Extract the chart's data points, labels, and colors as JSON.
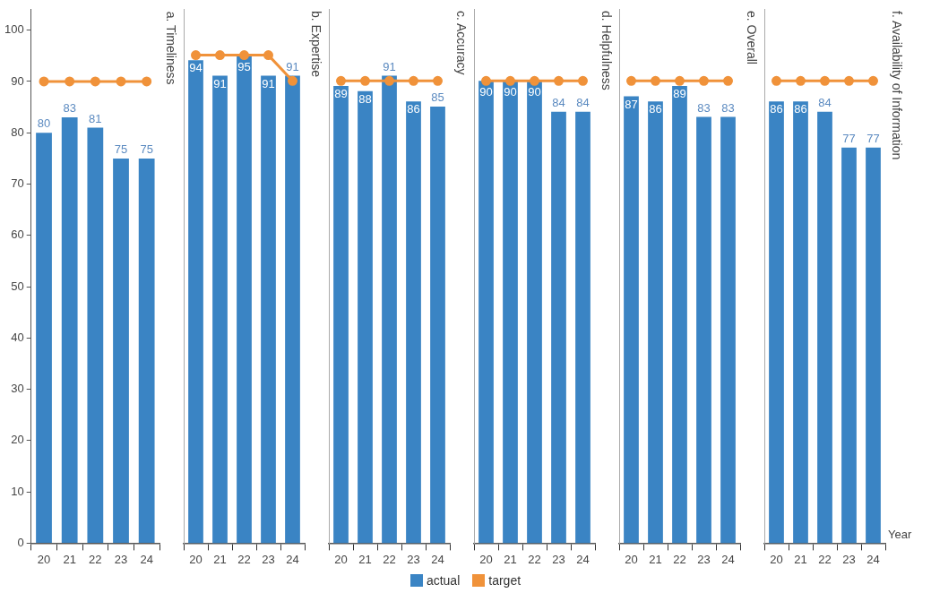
{
  "chart_data": [
    {
      "type": "bar",
      "title": "a. Timeliness",
      "categories": [
        "20",
        "21",
        "22",
        "23",
        "24"
      ],
      "ylim": [
        0,
        104
      ],
      "yticks": [
        0,
        10,
        20,
        30,
        40,
        50,
        60,
        70,
        80,
        90,
        100
      ],
      "legend": "bottom",
      "marker": "circle",
      "series": [
        {
          "name": "actual",
          "color": "#3a84c4",
          "values": [
            80,
            83,
            81,
            75,
            75
          ],
          "value_labels": [
            "80",
            "83",
            "81",
            "75",
            "75"
          ]
        },
        {
          "name": "target",
          "type": "line",
          "color": "#f0923a",
          "values": [
            90,
            90,
            90,
            90,
            90
          ]
        }
      ]
    },
    {
      "type": "bar",
      "title": "b. Expertise",
      "categories": [
        "20",
        "21",
        "22",
        "23",
        "24"
      ],
      "ylim": [
        0,
        104
      ],
      "tick_labels": "x",
      "marker": "circle",
      "series": [
        {
          "color": "#3a84c4",
          "values": [
            94,
            91,
            95,
            91,
            91
          ],
          "value_labels": [
            "94",
            "91",
            "95",
            "91",
            "91"
          ]
        },
        {
          "type": "line",
          "color": "#f0923a",
          "values": [
            95,
            95,
            95,
            95,
            90
          ]
        }
      ]
    },
    {
      "type": "bar",
      "title": "c. Accuracy",
      "categories": [
        "20",
        "21",
        "22",
        "23",
        "24"
      ],
      "ylim": [
        0,
        104
      ],
      "tick_labels": "x",
      "marker": "circle",
      "series": [
        {
          "color": "#3a84c4",
          "values": [
            89,
            88,
            91,
            86,
            85
          ],
          "value_labels": [
            "89",
            "88",
            "91",
            "86",
            "85"
          ]
        },
        {
          "type": "line",
          "color": "#f0923a",
          "values": [
            90,
            90,
            90,
            90,
            90
          ]
        }
      ]
    },
    {
      "type": "bar",
      "title": "d. Helpfulness",
      "categories": [
        "20",
        "21",
        "22",
        "23",
        "24"
      ],
      "ylim": [
        0,
        104
      ],
      "tick_labels": "x",
      "marker": "circle",
      "series": [
        {
          "color": "#3a84c4",
          "values": [
            90,
            90,
            90,
            84,
            84
          ],
          "value_labels": [
            "90",
            "90",
            "90",
            "84",
            "84"
          ]
        },
        {
          "type": "line",
          "color": "#f0923a",
          "values": [
            90,
            90,
            90,
            90,
            90
          ]
        }
      ]
    },
    {
      "type": "bar",
      "title": "e. Overall",
      "categories": [
        "20",
        "21",
        "22",
        "23",
        "24"
      ],
      "ylim": [
        0,
        104
      ],
      "tick_labels": "x",
      "marker": "circle",
      "series": [
        {
          "color": "#3a84c4",
          "values": [
            87,
            86,
            89,
            83,
            83
          ],
          "value_labels": [
            "87",
            "86",
            "89",
            "83",
            "83"
          ]
        },
        {
          "type": "line",
          "color": "#f0923a",
          "values": [
            90,
            90,
            90,
            90,
            90
          ]
        }
      ]
    },
    {
      "type": "bar",
      "title": "f. Availability of Information",
      "xlabel": "Year",
      "categories": [
        "20",
        "21",
        "22",
        "23",
        "24"
      ],
      "ylim": [
        0,
        104
      ],
      "tick_labels": "x",
      "marker": "circle",
      "series": [
        {
          "color": "#3a84c4",
          "values": [
            86,
            86,
            84,
            77,
            77
          ],
          "value_labels": [
            "86",
            "86",
            "84",
            "77",
            "77"
          ]
        },
        {
          "type": "line",
          "color": "#f0923a",
          "values": [
            90,
            90,
            90,
            90,
            90
          ]
        }
      ]
    }
  ]
}
